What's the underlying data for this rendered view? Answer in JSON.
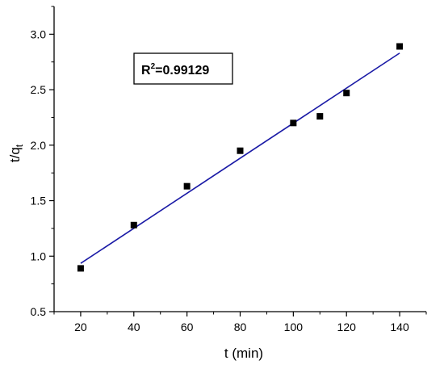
{
  "chart_data": {
    "type": "scatter",
    "xlabel": "t (min)",
    "ylabel": {
      "main": "t/q",
      "sub": "t"
    },
    "xlim": [
      10,
      150
    ],
    "ylim": [
      0.5,
      3.25
    ],
    "xticks": [
      20,
      40,
      60,
      80,
      100,
      120,
      140
    ],
    "yticks": [
      0.5,
      1.0,
      1.5,
      2.0,
      2.5,
      3.0
    ],
    "xtick_labels": [
      "20",
      "40",
      "60",
      "80",
      "100",
      "120",
      "140"
    ],
    "ytick_labels": [
      "0.5",
      "1.0",
      "1.5",
      "2.0",
      "2.5",
      "3.0"
    ],
    "grid": false,
    "series": [
      {
        "marker": "square",
        "color": "#000000",
        "x": [
          20,
          40,
          60,
          80,
          100,
          110,
          120,
          140
        ],
        "y": [
          0.89,
          1.28,
          1.63,
          1.95,
          2.2,
          2.26,
          2.47,
          2.89
        ]
      }
    ],
    "fit_line": {
      "color": "#1a1aa6",
      "x": [
        20,
        140
      ],
      "y": [
        0.935,
        2.83
      ]
    },
    "annotation": {
      "prefix": "R",
      "sup": "2",
      "suffix": "=0.99129"
    }
  }
}
